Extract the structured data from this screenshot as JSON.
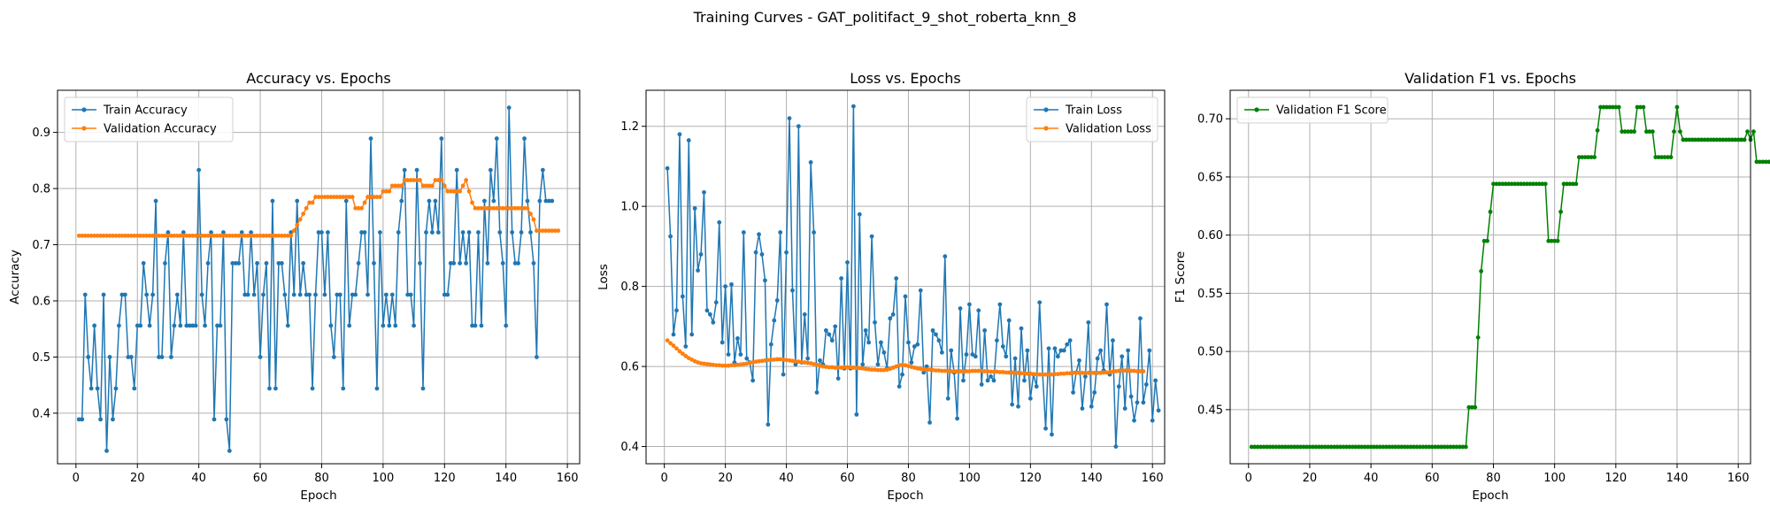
{
  "suptitle": "Training Curves - GAT_politifact_9_shot_roberta_knn_8",
  "colors": {
    "blue": "#1f77b4",
    "orange": "#ff7f0e",
    "green": "#008000",
    "grid": "#b0b0b0"
  },
  "chart_data": [
    {
      "type": "line",
      "title": "Accuracy vs. Epochs",
      "xlabel": "Epoch",
      "ylabel": "Accuracy",
      "xlim": [
        -6,
        164
      ],
      "ylim": [
        0.31,
        0.975
      ],
      "xticks": [
        0,
        20,
        40,
        60,
        80,
        100,
        120,
        140,
        160
      ],
      "yticks": [
        0.4,
        0.5,
        0.6,
        0.7,
        0.8,
        0.9
      ],
      "ytick_labels": [
        "0.4",
        "0.5",
        "0.6",
        "0.7",
        "0.8",
        "0.9"
      ],
      "legend": "top-left",
      "grid": true,
      "series": [
        {
          "name": "Train Accuracy",
          "color": "#1f77b4",
          "values": [
            0.389,
            0.389,
            0.611,
            0.5,
            0.444,
            0.556,
            0.444,
            0.389,
            0.611,
            0.333,
            0.5,
            0.389,
            0.444,
            0.556,
            0.611,
            0.611,
            0.5,
            0.5,
            0.444,
            0.556,
            0.556,
            0.667,
            0.611,
            0.556,
            0.611,
            0.778,
            0.5,
            0.5,
            0.667,
            0.722,
            0.5,
            0.556,
            0.611,
            0.556,
            0.722,
            0.556,
            0.556,
            0.556,
            0.556,
            0.833,
            0.611,
            0.556,
            0.667,
            0.722,
            0.389,
            0.556,
            0.556,
            0.722,
            0.389,
            0.333,
            0.667,
            0.667,
            0.667,
            0.722,
            0.611,
            0.611,
            0.722,
            0.611,
            0.667,
            0.5,
            0.611,
            0.667,
            0.444,
            0.778,
            0.444,
            0.667,
            0.667,
            0.611,
            0.556,
            0.722,
            0.611,
            0.778,
            0.611,
            0.667,
            0.611,
            0.611,
            0.444,
            0.611,
            0.722,
            0.722,
            0.611,
            0.722,
            0.556,
            0.5,
            0.611,
            0.611,
            0.444,
            0.778,
            0.556,
            0.611,
            0.611,
            0.667,
            0.722,
            0.722,
            0.611,
            0.889,
            0.667,
            0.444,
            0.722,
            0.556,
            0.611,
            0.556,
            0.611,
            0.556,
            0.722,
            0.778,
            0.833,
            0.611,
            0.611,
            0.556,
            0.833,
            0.667,
            0.444,
            0.722,
            0.778,
            0.722,
            0.778,
            0.722,
            0.889,
            0.611,
            0.611,
            0.667,
            0.667,
            0.833,
            0.667,
            0.722,
            0.667,
            0.722,
            0.556,
            0.556,
            0.722,
            0.556,
            0.778,
            0.667,
            0.833,
            0.778,
            0.889,
            0.722,
            0.667,
            0.556,
            0.944,
            0.722,
            0.667,
            0.667,
            0.722,
            0.889,
            0.778,
            0.722,
            0.667,
            0.5,
            0.778,
            0.833,
            0.778,
            0.778,
            0.778
          ]
        },
        {
          "name": "Validation Accuracy",
          "color": "#ff7f0e",
          "values": [
            0.716,
            0.716,
            0.716,
            0.716,
            0.716,
            0.716,
            0.716,
            0.716,
            0.716,
            0.716,
            0.716,
            0.716,
            0.716,
            0.716,
            0.716,
            0.716,
            0.716,
            0.716,
            0.716,
            0.716,
            0.716,
            0.716,
            0.716,
            0.716,
            0.716,
            0.716,
            0.716,
            0.716,
            0.716,
            0.716,
            0.716,
            0.716,
            0.716,
            0.716,
            0.716,
            0.716,
            0.716,
            0.716,
            0.716,
            0.716,
            0.716,
            0.716,
            0.716,
            0.716,
            0.716,
            0.716,
            0.716,
            0.716,
            0.716,
            0.716,
            0.716,
            0.716,
            0.716,
            0.716,
            0.716,
            0.716,
            0.716,
            0.716,
            0.716,
            0.716,
            0.716,
            0.716,
            0.716,
            0.716,
            0.716,
            0.716,
            0.716,
            0.716,
            0.716,
            0.716,
            0.725,
            0.735,
            0.745,
            0.755,
            0.765,
            0.775,
            0.775,
            0.785,
            0.785,
            0.785,
            0.785,
            0.785,
            0.785,
            0.785,
            0.785,
            0.785,
            0.785,
            0.785,
            0.785,
            0.785,
            0.765,
            0.765,
            0.765,
            0.775,
            0.785,
            0.785,
            0.785,
            0.785,
            0.785,
            0.795,
            0.795,
            0.795,
            0.805,
            0.805,
            0.805,
            0.805,
            0.815,
            0.815,
            0.815,
            0.815,
            0.815,
            0.815,
            0.805,
            0.805,
            0.805,
            0.805,
            0.815,
            0.815,
            0.815,
            0.805,
            0.795,
            0.795,
            0.795,
            0.795,
            0.795,
            0.805,
            0.815,
            0.795,
            0.775,
            0.765,
            0.765,
            0.765,
            0.765,
            0.765,
            0.765,
            0.765,
            0.765,
            0.765,
            0.765,
            0.765,
            0.765,
            0.765,
            0.765,
            0.765,
            0.765,
            0.765,
            0.765,
            0.755,
            0.745,
            0.725,
            0.725,
            0.725,
            0.725,
            0.725,
            0.725,
            0.725,
            0.725
          ]
        }
      ]
    },
    {
      "type": "line",
      "title": "Loss vs. Epochs",
      "xlabel": "Epoch",
      "ylabel": "Loss",
      "xlim": [
        -6,
        164
      ],
      "ylim": [
        0.357,
        1.29
      ],
      "xticks": [
        0,
        20,
        40,
        60,
        80,
        100,
        120,
        140,
        160
      ],
      "yticks": [
        0.4,
        0.6,
        0.8,
        1.0,
        1.2
      ],
      "ytick_labels": [
        "0.4",
        "0.6",
        "0.8",
        "1.0",
        "1.2"
      ],
      "legend": "top-right",
      "grid": true,
      "series": [
        {
          "name": "Train Loss",
          "color": "#1f77b4",
          "values": [
            1.095,
            0.925,
            0.68,
            0.74,
            1.18,
            0.775,
            0.65,
            1.165,
            0.68,
            0.995,
            0.84,
            0.88,
            1.035,
            0.74,
            0.73,
            0.71,
            0.76,
            0.96,
            0.66,
            0.8,
            0.63,
            0.805,
            0.61,
            0.67,
            0.63,
            0.935,
            0.62,
            0.61,
            0.565,
            0.885,
            0.93,
            0.88,
            0.815,
            0.455,
            0.655,
            0.715,
            0.765,
            0.935,
            0.58,
            0.885,
            1.22,
            0.79,
            0.605,
            1.2,
            0.61,
            0.73,
            0.62,
            1.11,
            0.935,
            0.535,
            0.615,
            0.605,
            0.69,
            0.68,
            0.665,
            0.7,
            0.57,
            0.82,
            0.595,
            0.86,
            0.595,
            1.25,
            0.48,
            0.98,
            0.605,
            0.69,
            0.66,
            0.925,
            0.71,
            0.605,
            0.66,
            0.635,
            0.595,
            0.72,
            0.73,
            0.82,
            0.55,
            0.58,
            0.775,
            0.66,
            0.61,
            0.65,
            0.655,
            0.79,
            0.585,
            0.6,
            0.46,
            0.69,
            0.68,
            0.665,
            0.635,
            0.875,
            0.52,
            0.64,
            0.585,
            0.47,
            0.745,
            0.565,
            0.63,
            0.755,
            0.63,
            0.625,
            0.74,
            0.555,
            0.69,
            0.565,
            0.575,
            0.565,
            0.665,
            0.755,
            0.65,
            0.625,
            0.715,
            0.505,
            0.62,
            0.5,
            0.695,
            0.565,
            0.64,
            0.52,
            0.58,
            0.55,
            0.76,
            0.58,
            0.445,
            0.645,
            0.43,
            0.645,
            0.625,
            0.64,
            0.64,
            0.655,
            0.665,
            0.535,
            0.585,
            0.615,
            0.495,
            0.575,
            0.71,
            0.5,
            0.535,
            0.62,
            0.64,
            0.59,
            0.755,
            0.58,
            0.665,
            0.4,
            0.55,
            0.625,
            0.495,
            0.64,
            0.525,
            0.465,
            0.51,
            0.72,
            0.51,
            0.555,
            0.64,
            0.465,
            0.565,
            0.49
          ]
        },
        {
          "name": "Validation Loss",
          "color": "#ff7f0e",
          "values": [
            0.665,
            0.658,
            0.652,
            0.645,
            0.638,
            0.632,
            0.626,
            0.621,
            0.617,
            0.613,
            0.61,
            0.608,
            0.607,
            0.606,
            0.605,
            0.604,
            0.603,
            0.603,
            0.602,
            0.602,
            0.602,
            0.603,
            0.603,
            0.604,
            0.605,
            0.606,
            0.607,
            0.609,
            0.61,
            0.612,
            0.613,
            0.614,
            0.615,
            0.616,
            0.617,
            0.617,
            0.618,
            0.618,
            0.617,
            0.616,
            0.615,
            0.614,
            0.613,
            0.612,
            0.611,
            0.61,
            0.609,
            0.608,
            0.606,
            0.604,
            0.602,
            0.6,
            0.599,
            0.598,
            0.598,
            0.597,
            0.597,
            0.597,
            0.598,
            0.598,
            0.598,
            0.597,
            0.596,
            0.596,
            0.595,
            0.594,
            0.593,
            0.592,
            0.592,
            0.591,
            0.591,
            0.591,
            0.592,
            0.594,
            0.597,
            0.6,
            0.603,
            0.604,
            0.603,
            0.601,
            0.599,
            0.597,
            0.595,
            0.594,
            0.593,
            0.592,
            0.592,
            0.591,
            0.59,
            0.59,
            0.589,
            0.589,
            0.589,
            0.588,
            0.588,
            0.588,
            0.588,
            0.587,
            0.588,
            0.588,
            0.589,
            0.589,
            0.589,
            0.589,
            0.588,
            0.588,
            0.587,
            0.587,
            0.587,
            0.586,
            0.586,
            0.585,
            0.585,
            0.585,
            0.584,
            0.584,
            0.583,
            0.583,
            0.582,
            0.582,
            0.581,
            0.581,
            0.58,
            0.58,
            0.58,
            0.58,
            0.58,
            0.581,
            0.581,
            0.582,
            0.582,
            0.583,
            0.583,
            0.584,
            0.584,
            0.584,
            0.584,
            0.584,
            0.584,
            0.584,
            0.584,
            0.584,
            0.584,
            0.585,
            0.585,
            0.586,
            0.587,
            0.588,
            0.589,
            0.59,
            0.59,
            0.59,
            0.589,
            0.589,
            0.588,
            0.588,
            0.588
          ]
        }
      ]
    },
    {
      "type": "line",
      "title": "Validation F1 vs. Epochs",
      "xlabel": "Epoch",
      "ylabel": "F1 Score",
      "xlim": [
        -6,
        164
      ],
      "ylim": [
        0.4035,
        0.7245
      ],
      "xticks": [
        0,
        20,
        40,
        60,
        80,
        100,
        120,
        140,
        160
      ],
      "yticks": [
        0.45,
        0.5,
        0.55,
        0.6,
        0.65,
        0.7
      ],
      "ytick_labels": [
        "0.45",
        "0.50",
        "0.55",
        "0.60",
        "0.65",
        "0.70"
      ],
      "legend": "top-left",
      "grid": true,
      "series": [
        {
          "name": "Validation F1 Score",
          "color": "#008000",
          "values": [
            0.418,
            0.418,
            0.418,
            0.418,
            0.418,
            0.418,
            0.418,
            0.418,
            0.418,
            0.418,
            0.418,
            0.418,
            0.418,
            0.418,
            0.418,
            0.418,
            0.418,
            0.418,
            0.418,
            0.418,
            0.418,
            0.418,
            0.418,
            0.418,
            0.418,
            0.418,
            0.418,
            0.418,
            0.418,
            0.418,
            0.418,
            0.418,
            0.418,
            0.418,
            0.418,
            0.418,
            0.418,
            0.418,
            0.418,
            0.418,
            0.418,
            0.418,
            0.418,
            0.418,
            0.418,
            0.418,
            0.418,
            0.418,
            0.418,
            0.418,
            0.418,
            0.418,
            0.418,
            0.418,
            0.418,
            0.418,
            0.418,
            0.418,
            0.418,
            0.418,
            0.418,
            0.418,
            0.418,
            0.418,
            0.418,
            0.418,
            0.418,
            0.418,
            0.418,
            0.418,
            0.418,
            0.452,
            0.452,
            0.452,
            0.512,
            0.569,
            0.595,
            0.595,
            0.62,
            0.644,
            0.644,
            0.644,
            0.644,
            0.644,
            0.644,
            0.644,
            0.644,
            0.644,
            0.644,
            0.644,
            0.644,
            0.644,
            0.644,
            0.644,
            0.644,
            0.644,
            0.644,
            0.595,
            0.595,
            0.595,
            0.595,
            0.62,
            0.644,
            0.644,
            0.644,
            0.644,
            0.644,
            0.667,
            0.667,
            0.667,
            0.667,
            0.667,
            0.667,
            0.69,
            0.71,
            0.71,
            0.71,
            0.71,
            0.71,
            0.71,
            0.71,
            0.689,
            0.689,
            0.689,
            0.689,
            0.689,
            0.71,
            0.71,
            0.71,
            0.689,
            0.689,
            0.689,
            0.667,
            0.667,
            0.667,
            0.667,
            0.667,
            0.667,
            0.689,
            0.71,
            0.689,
            0.682,
            0.682,
            0.682,
            0.682,
            0.682,
            0.682,
            0.682,
            0.682,
            0.682,
            0.682,
            0.682,
            0.682,
            0.682,
            0.682,
            0.682,
            0.682,
            0.682,
            0.682,
            0.682,
            0.682,
            0.682,
            0.689,
            0.682,
            0.689,
            0.663,
            0.663,
            0.663,
            0.663,
            0.663,
            0.663,
            0.663
          ]
        }
      ]
    }
  ]
}
